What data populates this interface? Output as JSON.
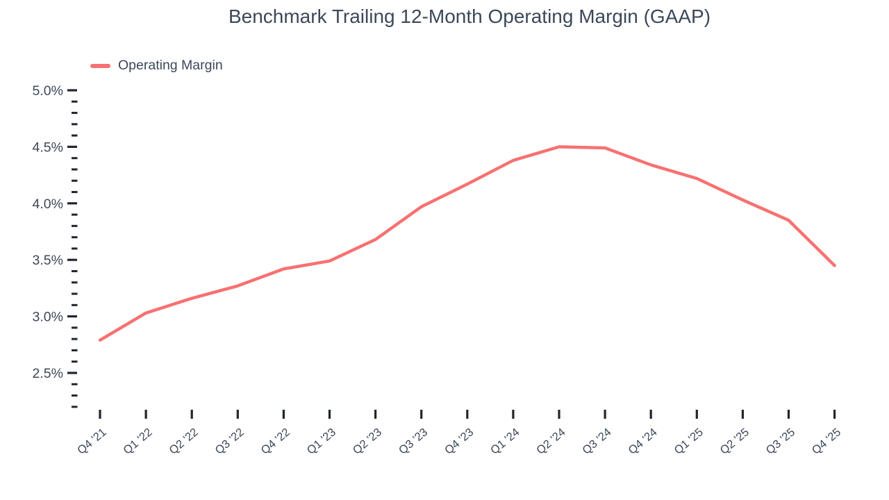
{
  "title": "Benchmark Trailing 12-Month Operating Margin (GAAP)",
  "legend": {
    "label": "Operating Margin"
  },
  "colors": {
    "line": "#f87171",
    "text": "#3c4859",
    "tick": "#21262e"
  },
  "chart_data": {
    "type": "line",
    "title": "Benchmark Trailing 12-Month Operating Margin (GAAP)",
    "categories": [
      "Q4 '21",
      "Q1 '22",
      "Q2 '22",
      "Q3 '22",
      "Q4 '22",
      "Q1 '23",
      "Q2 '23",
      "Q3 '23",
      "Q4 '23",
      "Q1 '24",
      "Q2 '24",
      "Q3 '24",
      "Q4 '24",
      "Q1 '25",
      "Q2 '25",
      "Q3 '25",
      "Q4 '25"
    ],
    "series": [
      {
        "name": "Operating Margin",
        "unit": "%",
        "values": [
          2.79,
          3.03,
          3.16,
          3.27,
          3.42,
          3.49,
          3.68,
          3.97,
          4.17,
          4.38,
          4.5,
          4.49,
          4.34,
          4.22,
          4.03,
          3.85,
          3.45
        ]
      }
    ],
    "xlabel": "",
    "ylabel": "",
    "ylim": [
      2.15,
      5.0
    ],
    "y_major_ticks": [
      5.0,
      4.5,
      4.0,
      3.5,
      3.0,
      2.5
    ],
    "y_tick_labels": [
      "5.0%",
      "4.5%",
      "4.0%",
      "3.5%",
      "3.0%",
      "2.5%"
    ],
    "y_minor_tick_step": 0.1,
    "y_minor_min": 2.2,
    "grid": false,
    "legend_position": "top-left",
    "line_color": "#f87171"
  }
}
